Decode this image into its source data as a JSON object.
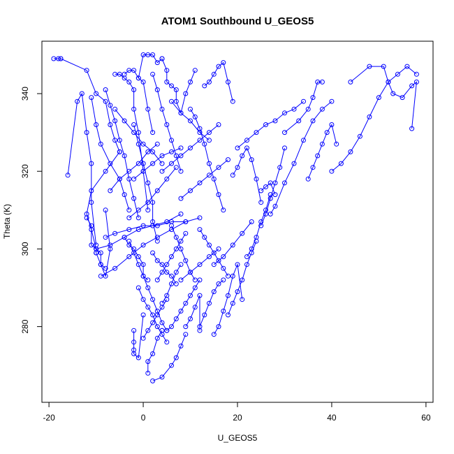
{
  "chart_data": {
    "type": "line",
    "title": "ATOM1 Southbound U_GEOS5",
    "xlabel": "U_GEOS5",
    "ylabel": "Theta (K)",
    "xlim": [
      -21.5,
      61.5
    ],
    "ylim": [
      260.5,
      353.5
    ],
    "x_ticks": [
      -20,
      0,
      20,
      40,
      60
    ],
    "y_ticks": [
      280,
      300,
      320,
      340
    ],
    "grid": false,
    "marker": "open-circle",
    "series_color": "#0000ff",
    "series": [
      {
        "x": [
          -19,
          -18,
          -17.5
        ],
        "y": [
          349,
          349,
          349
        ]
      },
      {
        "x": [
          -17.5,
          -12,
          -10,
          -8,
          -7,
          -6,
          -5
        ],
        "y": [
          349,
          346,
          340,
          338,
          332,
          328,
          325
        ]
      },
      {
        "x": [
          -5,
          -8,
          -11,
          -12,
          -11,
          -10,
          -10
        ],
        "y": [
          325,
          320,
          315,
          309,
          305,
          300,
          299
        ]
      },
      {
        "x": [
          -10,
          -9,
          -8,
          -7,
          -8
        ],
        "y": [
          299,
          296,
          293,
          300,
          310
        ]
      },
      {
        "x": [
          -16,
          -14,
          -13,
          -12,
          -11,
          -11,
          -10
        ],
        "y": [
          319,
          338,
          340,
          330,
          322,
          312,
          301
        ]
      },
      {
        "x": [
          -12,
          -11,
          -11,
          -10,
          -9,
          -9,
          -8
        ],
        "y": [
          308,
          306,
          301,
          300,
          299,
          296,
          295
        ]
      },
      {
        "x": [
          -11,
          -10,
          -9,
          -7,
          -5,
          -4,
          -3
        ],
        "y": [
          339,
          332,
          327,
          322,
          318,
          314,
          310
        ]
      },
      {
        "x": [
          -8,
          -7,
          -6,
          -5,
          -4,
          -3,
          -2,
          -1
        ],
        "y": [
          341,
          337,
          333,
          328,
          324,
          318,
          313,
          308
        ]
      },
      {
        "x": [
          -6,
          -5,
          -4,
          -3,
          -2,
          -2,
          -1,
          0,
          1
        ],
        "y": [
          345,
          345,
          344,
          343,
          341,
          336,
          330,
          320,
          310
        ]
      },
      {
        "x": [
          -4,
          -3,
          -2,
          -1,
          0,
          1,
          2
        ],
        "y": [
          345,
          346,
          346,
          344,
          343,
          336,
          330
        ]
      },
      {
        "x": [
          -1,
          0,
          1,
          2,
          3,
          4
        ],
        "y": [
          344,
          350,
          350,
          350,
          348,
          349
        ]
      },
      {
        "x": [
          4,
          5,
          5,
          6,
          7,
          7,
          8,
          9,
          10,
          11
        ],
        "y": [
          349,
          346,
          343,
          342,
          341,
          338,
          335,
          340,
          343,
          346
        ]
      },
      {
        "x": [
          2,
          3,
          4,
          5,
          6,
          7,
          8
        ],
        "y": [
          345,
          341,
          336,
          332,
          328,
          324,
          320
        ]
      },
      {
        "x": [
          -2,
          -1,
          0,
          1,
          2,
          2,
          3
        ],
        "y": [
          332,
          327,
          322,
          317,
          312,
          307,
          302
        ]
      },
      {
        "x": [
          -4,
          -3,
          -2,
          -1,
          0,
          0,
          1
        ],
        "y": [
          303,
          301,
          300,
          298,
          296,
          293,
          292
        ]
      },
      {
        "x": [
          -3,
          -2,
          -1,
          0,
          1,
          2,
          3,
          4,
          5
        ],
        "y": [
          302,
          299,
          296,
          293,
          290,
          287,
          284,
          281,
          279
        ]
      },
      {
        "x": [
          -2,
          -2,
          -2,
          -2,
          -1,
          0
        ],
        "y": [
          279,
          276,
          274,
          273,
          272,
          283
        ]
      },
      {
        "x": [
          -1,
          0,
          1,
          2,
          3,
          4,
          5
        ],
        "y": [
          290,
          287,
          285,
          283,
          280,
          278,
          276
        ]
      },
      {
        "x": [
          1,
          1,
          2,
          3,
          4,
          4
        ],
        "y": [
          268,
          271,
          273,
          277,
          279,
          279
        ]
      },
      {
        "x": [
          2,
          4,
          6,
          7,
          8,
          9
        ],
        "y": [
          266,
          267,
          270,
          272,
          275,
          278
        ]
      },
      {
        "x": [
          5,
          6,
          7,
          8,
          9,
          10,
          11,
          12
        ],
        "y": [
          279,
          280,
          282,
          284,
          286,
          288,
          290,
          292
        ]
      },
      {
        "x": [
          9,
          10,
          11,
          12,
          12
        ],
        "y": [
          280,
          282,
          285,
          288,
          279
        ]
      },
      {
        "x": [
          12,
          13,
          14,
          15,
          16,
          17
        ],
        "y": [
          280,
          283,
          286,
          289,
          291,
          292
        ]
      },
      {
        "x": [
          15,
          16,
          17,
          18,
          19,
          20,
          21
        ],
        "y": [
          278,
          280,
          284,
          288,
          293,
          296,
          287
        ]
      },
      {
        "x": [
          18,
          19,
          20,
          21,
          22,
          23,
          24
        ],
        "y": [
          283,
          286,
          289,
          292,
          296,
          299,
          302
        ]
      },
      {
        "x": [
          22,
          23,
          24,
          25,
          26,
          27
        ],
        "y": [
          298,
          300,
          303,
          307,
          310,
          314
        ]
      },
      {
        "x": [
          25,
          26,
          27,
          28,
          29,
          30
        ],
        "y": [
          306,
          309,
          313,
          317,
          321,
          326
        ]
      },
      {
        "x": [
          27,
          28,
          30,
          32,
          34,
          36,
          38,
          40
        ],
        "y": [
          309,
          311,
          317,
          322,
          328,
          333,
          336,
          338
        ]
      },
      {
        "x": [
          35,
          36,
          37,
          38,
          39,
          40,
          41
        ],
        "y": [
          318,
          321,
          324,
          327,
          330,
          332,
          327
        ]
      },
      {
        "x": [
          40,
          42,
          44,
          46,
          48,
          50,
          52,
          54,
          56,
          58
        ],
        "y": [
          320,
          322,
          325,
          329,
          334,
          339,
          343,
          345,
          347,
          345
        ]
      },
      {
        "x": [
          44,
          48,
          51,
          52,
          53,
          55,
          57,
          58,
          57
        ],
        "y": [
          343,
          347,
          347,
          343,
          340,
          339,
          342,
          343,
          331
        ]
      },
      {
        "x": [
          30,
          33,
          35,
          36,
          37,
          38
        ],
        "y": [
          330,
          333,
          336,
          339,
          343,
          343
        ]
      },
      {
        "x": [
          20,
          22,
          24,
          26,
          28,
          30,
          32,
          34
        ],
        "y": [
          326,
          328,
          330,
          332,
          333,
          335,
          336,
          338
        ]
      },
      {
        "x": [
          13,
          14,
          15,
          16,
          17,
          18,
          19
        ],
        "y": [
          342,
          343,
          345,
          347,
          348,
          343,
          338
        ]
      },
      {
        "x": [
          10,
          11,
          12,
          13,
          14,
          15,
          16,
          17
        ],
        "y": [
          336,
          334,
          331,
          327,
          322,
          318,
          314,
          310
        ]
      },
      {
        "x": [
          12,
          13,
          14,
          15,
          16,
          17,
          18
        ],
        "y": [
          305,
          303,
          301,
          299,
          297,
          295,
          293
        ]
      },
      {
        "x": [
          6,
          7,
          8,
          9,
          10,
          11
        ],
        "y": [
          306,
          303,
          300,
          297,
          294,
          292
        ]
      },
      {
        "x": [
          2,
          3,
          4,
          5,
          6,
          7
        ],
        "y": [
          299,
          297,
          296,
          294,
          293,
          291
        ]
      },
      {
        "x": [
          3,
          4,
          5,
          6,
          7,
          8,
          9
        ],
        "y": [
          292,
          294,
          296,
          298,
          300,
          302,
          304
        ]
      },
      {
        "x": [
          -8,
          -6,
          -3,
          0,
          3,
          6,
          9,
          12
        ],
        "y": [
          303,
          304,
          305,
          306,
          306,
          307,
          307,
          308
        ]
      },
      {
        "x": [
          -10,
          -7,
          -4,
          -1,
          2,
          5,
          8
        ],
        "y": [
          300,
          301,
          303,
          305,
          306,
          307,
          309
        ]
      },
      {
        "x": [
          -2,
          0,
          2,
          4,
          6,
          8
        ],
        "y": [
          318,
          320,
          322,
          324,
          325,
          326
        ]
      },
      {
        "x": [
          4,
          6,
          8,
          10,
          12,
          14,
          16
        ],
        "y": [
          320,
          322,
          324,
          326,
          328,
          330,
          332
        ]
      },
      {
        "x": [
          8,
          10,
          12,
          14,
          16,
          18
        ],
        "y": [
          313,
          315,
          317,
          319,
          321,
          323
        ]
      },
      {
        "x": [
          -6,
          -4,
          -2,
          0,
          2,
          4
        ],
        "y": [
          336,
          333,
          330,
          327,
          325,
          322
        ]
      },
      {
        "x": [
          6,
          8,
          10,
          12,
          14
        ],
        "y": [
          338,
          335,
          333,
          330,
          328
        ]
      },
      {
        "x": [
          19,
          20,
          21,
          22,
          23,
          24,
          25
        ],
        "y": [
          319,
          321,
          324,
          326,
          323,
          318,
          312
        ]
      },
      {
        "x": [
          25,
          26,
          27,
          28
        ],
        "y": [
          315,
          316,
          317,
          314
        ]
      },
      {
        "x": [
          15,
          17,
          19,
          21,
          23
        ],
        "y": [
          296,
          298,
          301,
          304,
          307
        ]
      },
      {
        "x": [
          8,
          10,
          12,
          14,
          16
        ],
        "y": [
          292,
          294,
          296,
          298,
          300
        ]
      },
      {
        "x": [
          -9,
          -6,
          -3,
          0,
          3,
          6,
          9
        ],
        "y": [
          293,
          295,
          298,
          301,
          303,
          305,
          307
        ]
      },
      {
        "x": [
          4,
          5,
          6,
          7,
          8
        ],
        "y": [
          286,
          288,
          291,
          294,
          296
        ]
      },
      {
        "x": [
          0,
          1,
          2,
          3,
          4,
          5
        ],
        "y": [
          277,
          279,
          281,
          283,
          285,
          287
        ]
      },
      {
        "x": [
          -3,
          -1,
          1,
          3,
          5,
          7
        ],
        "y": [
          308,
          310,
          312,
          315,
          318,
          321
        ]
      },
      {
        "x": [
          -7,
          -5,
          -3,
          -1,
          1,
          3
        ],
        "y": [
          315,
          318,
          320,
          322,
          325,
          327
        ]
      }
    ]
  }
}
